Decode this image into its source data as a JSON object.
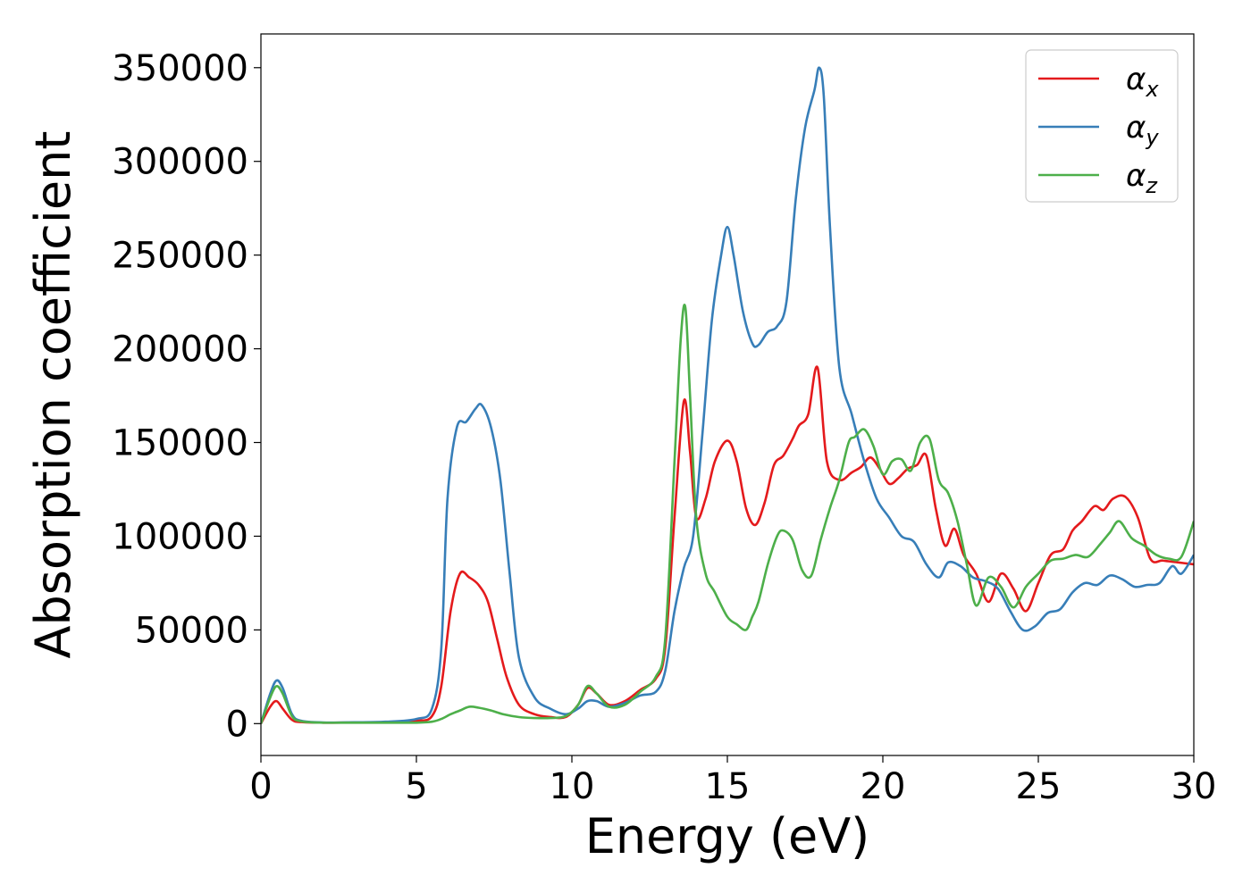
{
  "chart_data": {
    "type": "line",
    "xlabel": "Energy (eV)",
    "ylabel": "Absorption coefficient",
    "xlim": [
      0,
      30
    ],
    "ylim": [
      -17000,
      368000
    ],
    "xticks": [
      0,
      5,
      10,
      15,
      20,
      25,
      30
    ],
    "yticks": [
      0,
      50000,
      100000,
      150000,
      200000,
      250000,
      300000,
      350000
    ],
    "grid": false,
    "legend_position": "top-right",
    "series": [
      {
        "name": "α",
        "subscript": "x",
        "color": "#e41a1c",
        "x": [
          0,
          0.3,
          0.5,
          0.7,
          1.0,
          1.3,
          2,
          3,
          4,
          5,
          5.5,
          5.8,
          6.1,
          6.4,
          6.7,
          7.0,
          7.3,
          7.6,
          7.9,
          8.3,
          8.8,
          9.3,
          9.8,
          10.2,
          10.5,
          10.8,
          11.2,
          11.7,
          12.2,
          12.7,
          13.0,
          13.3,
          13.6,
          13.8,
          14.0,
          14.3,
          14.6,
          15.0,
          15.3,
          15.6,
          15.9,
          16.2,
          16.5,
          16.8,
          17.1,
          17.3,
          17.6,
          17.9,
          18.2,
          18.6,
          19.0,
          19.3,
          19.6,
          19.9,
          20.2,
          20.5,
          20.8,
          21.1,
          21.4,
          21.7,
          22.0,
          22.3,
          22.6,
          23.0,
          23.4,
          23.8,
          24.2,
          24.6,
          25.0,
          25.4,
          25.8,
          26.1,
          26.4,
          26.8,
          27.1,
          27.4,
          27.8,
          28.2,
          28.6,
          29.0,
          29.5,
          30.0
        ],
        "values": [
          0,
          9000,
          12000,
          8000,
          2000,
          800,
          500,
          600,
          800,
          1500,
          4000,
          20000,
          60000,
          80000,
          78000,
          74000,
          65000,
          45000,
          25000,
          10000,
          5000,
          3500,
          3500,
          10000,
          19000,
          16000,
          10000,
          12000,
          18000,
          24000,
          40000,
          110000,
          172000,
          145000,
          110000,
          120000,
          140000,
          151000,
          140000,
          115000,
          106000,
          118000,
          138000,
          143000,
          152000,
          159000,
          165000,
          190000,
          140000,
          130000,
          134000,
          137000,
          142000,
          136000,
          128000,
          131000,
          136000,
          138000,
          143000,
          115000,
          95000,
          104000,
          90000,
          80000,
          65000,
          80000,
          72000,
          60000,
          75000,
          90000,
          93000,
          103000,
          108000,
          116000,
          114000,
          120000,
          121000,
          110000,
          88000,
          87000,
          86000,
          85000
        ]
      },
      {
        "name": "α",
        "subscript": "y",
        "color": "#377eb8",
        "x": [
          0,
          0.3,
          0.5,
          0.7,
          1.0,
          1.3,
          2,
          3,
          4,
          5,
          5.5,
          5.8,
          6.0,
          6.3,
          6.6,
          6.9,
          7.1,
          7.4,
          7.7,
          8.0,
          8.3,
          8.8,
          9.3,
          9.8,
          10.2,
          10.5,
          10.8,
          11.2,
          11.7,
          12.2,
          12.7,
          13.0,
          13.3,
          13.6,
          13.9,
          14.2,
          14.5,
          14.8,
          15.0,
          15.2,
          15.5,
          15.8,
          16.0,
          16.3,
          16.6,
          16.9,
          17.2,
          17.5,
          17.8,
          17.95,
          18.1,
          18.3,
          18.6,
          19.0,
          19.4,
          19.8,
          20.2,
          20.6,
          21.0,
          21.4,
          21.8,
          22.1,
          22.5,
          22.9,
          23.3,
          23.7,
          24.1,
          24.5,
          24.9,
          25.3,
          25.7,
          26.1,
          26.5,
          26.9,
          27.3,
          27.7,
          28.1,
          28.5,
          28.9,
          29.3,
          29.6,
          30.0
        ],
        "values": [
          0,
          16000,
          23000,
          19000,
          5000,
          1500,
          600,
          700,
          1000,
          2500,
          8000,
          40000,
          120000,
          158000,
          161000,
          168000,
          170000,
          158000,
          130000,
          80000,
          35000,
          14000,
          8000,
          5000,
          8000,
          12000,
          12000,
          9000,
          11000,
          15000,
          17000,
          28000,
          60000,
          83000,
          100000,
          155000,
          215000,
          250000,
          265000,
          250000,
          220000,
          203000,
          202000,
          209000,
          212000,
          225000,
          280000,
          318000,
          338000,
          350000,
          335000,
          265000,
          190000,
          165000,
          140000,
          120000,
          110000,
          100000,
          97000,
          85000,
          78000,
          86000,
          84000,
          78000,
          76000,
          72000,
          60000,
          50000,
          52000,
          59000,
          61000,
          70000,
          75000,
          74000,
          79000,
          77000,
          73000,
          74000,
          75000,
          84000,
          80000,
          90000
        ]
      },
      {
        "name": "α",
        "subscript": "z",
        "color": "#4daf4a",
        "x": [
          0,
          0.3,
          0.5,
          0.7,
          1.0,
          1.3,
          2,
          3,
          4,
          5,
          5.5,
          5.8,
          6.1,
          6.4,
          6.7,
          7.0,
          7.4,
          7.8,
          8.3,
          8.8,
          9.3,
          9.8,
          10.2,
          10.5,
          10.8,
          11.2,
          11.7,
          12.2,
          12.7,
          13.0,
          13.3,
          13.5,
          13.65,
          13.8,
          14.0,
          14.3,
          14.6,
          15.0,
          15.3,
          15.6,
          15.8,
          16.0,
          16.3,
          16.6,
          16.8,
          17.1,
          17.4,
          17.7,
          18.0,
          18.3,
          18.6,
          18.9,
          19.1,
          19.4,
          19.7,
          20.0,
          20.3,
          20.6,
          20.9,
          21.2,
          21.5,
          21.8,
          22.1,
          22.4,
          22.7,
          23.0,
          23.4,
          23.8,
          24.2,
          24.6,
          25.0,
          25.4,
          25.8,
          26.2,
          26.6,
          27.0,
          27.3,
          27.6,
          28.0,
          28.4,
          28.8,
          29.2,
          29.6,
          30.0
        ],
        "values": [
          0,
          14000,
          20000,
          16000,
          4000,
          1200,
          500,
          500,
          500,
          500,
          1000,
          2500,
          5000,
          7000,
          9000,
          8500,
          7000,
          5000,
          3500,
          3000,
          3000,
          4000,
          10000,
          20000,
          16000,
          9000,
          10000,
          17000,
          25000,
          45000,
          140000,
          205000,
          222000,
          175000,
          110000,
          80000,
          70000,
          57000,
          53000,
          50000,
          57000,
          65000,
          85000,
          100000,
          103000,
          98000,
          82000,
          79000,
          98000,
          115000,
          130000,
          150000,
          153000,
          157000,
          148000,
          133000,
          140000,
          141000,
          135000,
          150000,
          152000,
          130000,
          123000,
          108000,
          85000,
          63000,
          78000,
          73000,
          62000,
          73000,
          80000,
          87000,
          88000,
          90000,
          89000,
          96000,
          102000,
          108000,
          99000,
          95000,
          90000,
          88000,
          89000,
          108000
        ]
      }
    ]
  }
}
